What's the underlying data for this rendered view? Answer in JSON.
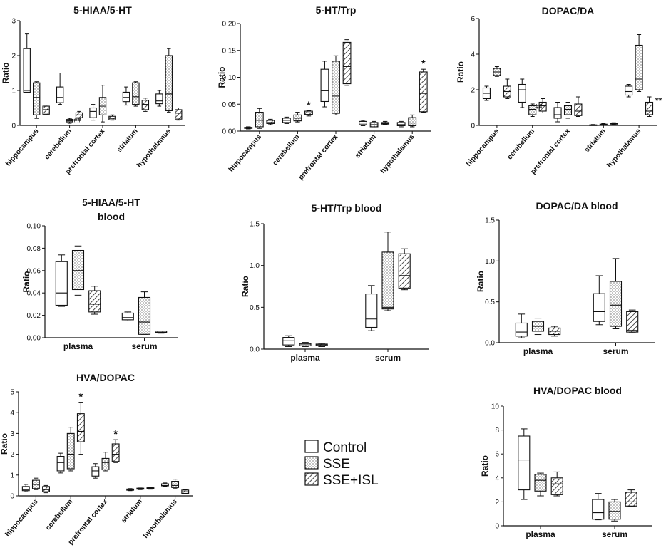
{
  "legend": [
    {
      "name": "Control",
      "pattern": "none"
    },
    {
      "name": "SSE",
      "pattern": "dots"
    },
    {
      "name": "SSE+ISL",
      "pattern": "hatch"
    }
  ],
  "chart_data": [
    {
      "type": "box",
      "title": "5-HIAA/5-HT",
      "ylabel": "Ratio",
      "ylim": [
        0,
        3
      ],
      "yticks": [
        0,
        1,
        2,
        3
      ],
      "ytick_labels": [
        "0",
        "1",
        "2",
        "3"
      ],
      "categories": [
        "hippocampus",
        "cerebellum",
        "prefrontal cortex",
        "striatum",
        "hypothalamus"
      ],
      "series": [
        {
          "name": "Control",
          "boxes": [
            [
              0.95,
              0.95,
              1.0,
              2.2,
              2.62
            ],
            [
              0.6,
              0.65,
              0.8,
              1.1,
              1.5
            ],
            [
              0.15,
              0.22,
              0.4,
              0.5,
              0.6
            ],
            [
              0.58,
              0.68,
              0.8,
              0.95,
              1.1
            ],
            [
              0.55,
              0.62,
              0.7,
              0.9,
              1.0
            ]
          ]
        },
        {
          "name": "SSE",
          "boxes": [
            [
              0.2,
              0.3,
              0.8,
              1.22,
              1.25
            ],
            [
              0.06,
              0.1,
              0.13,
              0.17,
              0.2
            ],
            [
              0.1,
              0.3,
              0.55,
              0.8,
              1.15
            ],
            [
              0.55,
              0.6,
              0.82,
              1.22,
              1.25
            ],
            [
              0.38,
              0.42,
              0.9,
              2.0,
              2.2
            ]
          ]
        },
        {
          "name": "SSE+ISL",
          "boxes": [
            [
              0.3,
              0.32,
              0.45,
              0.55,
              0.58
            ],
            [
              0.2,
              0.22,
              0.3,
              0.36,
              0.4
            ],
            [
              0.15,
              0.16,
              0.2,
              0.26,
              0.3
            ],
            [
              0.4,
              0.45,
              0.6,
              0.72,
              0.78
            ],
            [
              0.15,
              0.18,
              0.35,
              0.45,
              0.5
            ]
          ]
        }
      ],
      "annotations": [
        {
          "text": "###",
          "category": "cerebellum",
          "series": "SSE"
        }
      ]
    },
    {
      "type": "box",
      "title": "5-HT/Trp",
      "ylabel": "Ratio",
      "ylim": [
        0,
        0.2
      ],
      "yticks": [
        0,
        0.05,
        0.1,
        0.15,
        0.2
      ],
      "ytick_labels": [
        "0.00",
        "0.05",
        "0.10",
        "0.15",
        "0.20"
      ],
      "categories": [
        "hippocampus",
        "cerebellum",
        "prefrontal cortex",
        "striatum",
        "hypothalamus"
      ],
      "series": [
        {
          "name": "Control",
          "boxes": [
            [
              0.004,
              0.005,
              0.006,
              0.007,
              0.008
            ],
            [
              0.014,
              0.016,
              0.02,
              0.024,
              0.026
            ],
            [
              0.045,
              0.055,
              0.075,
              0.115,
              0.13
            ],
            [
              0.01,
              0.012,
              0.015,
              0.018,
              0.02
            ],
            [
              0.008,
              0.01,
              0.012,
              0.016,
              0.018
            ]
          ]
        },
        {
          "name": "SSE",
          "boxes": [
            [
              0.005,
              0.008,
              0.02,
              0.035,
              0.042
            ],
            [
              0.017,
              0.019,
              0.024,
              0.03,
              0.035
            ],
            [
              0.03,
              0.033,
              0.065,
              0.13,
              0.14
            ],
            [
              0.006,
              0.008,
              0.012,
              0.016,
              0.018
            ],
            [
              0.008,
              0.01,
              0.015,
              0.025,
              0.03
            ]
          ]
        },
        {
          "name": "SSE+ISL",
          "boxes": [
            [
              0.012,
              0.014,
              0.016,
              0.02,
              0.022
            ],
            [
              0.028,
              0.031,
              0.034,
              0.037,
              0.038
            ],
            [
              0.085,
              0.088,
              0.12,
              0.165,
              0.17
            ],
            [
              0.012,
              0.013,
              0.014,
              0.016,
              0.018
            ],
            [
              0.035,
              0.036,
              0.07,
              0.11,
              0.115
            ]
          ]
        }
      ],
      "annotations": [
        {
          "text": "*",
          "category": "cerebellum",
          "series": "SSE+ISL"
        },
        {
          "text": "*",
          "category": "hypothalamus",
          "series": "SSE+ISL"
        }
      ]
    },
    {
      "type": "box",
      "title": "DOPAC/DA",
      "ylabel": "Ratio",
      "ylim": [
        0,
        6
      ],
      "yticks": [
        0,
        2,
        4,
        6
      ],
      "ytick_labels": [
        "0",
        "2",
        "4",
        "6"
      ],
      "categories": [
        "hippocampus",
        "cerebellum",
        "prefrontal cortex",
        "striatum",
        "hypothalamus"
      ],
      "series": [
        {
          "name": "Control",
          "boxes": [
            [
              1.4,
              1.5,
              1.8,
              2.1,
              2.2
            ],
            [
              1.0,
              1.3,
              2.0,
              2.3,
              2.6
            ],
            [
              0.2,
              0.4,
              0.6,
              1.0,
              1.3
            ],
            [
              0.0,
              0.01,
              0.02,
              0.03,
              0.05
            ],
            [
              1.6,
              1.7,
              1.9,
              2.2,
              2.3
            ]
          ]
        },
        {
          "name": "SSE",
          "boxes": [
            [
              2.75,
              2.8,
              3.0,
              3.2,
              3.3
            ],
            [
              0.5,
              0.6,
              0.9,
              1.1,
              1.2
            ],
            [
              0.4,
              0.6,
              0.9,
              1.1,
              1.3
            ],
            [
              0.02,
              0.03,
              0.05,
              0.07,
              0.1
            ],
            [
              1.9,
              2.0,
              2.6,
              4.5,
              5.1
            ]
          ]
        },
        {
          "name": "SSE+ISL",
          "boxes": [
            [
              1.5,
              1.6,
              1.9,
              2.2,
              2.6
            ],
            [
              0.7,
              0.8,
              1.1,
              1.3,
              1.5
            ],
            [
              0.5,
              0.55,
              0.8,
              1.2,
              1.6
            ],
            [
              0.05,
              0.07,
              0.1,
              0.12,
              0.15
            ],
            [
              0.5,
              0.6,
              0.8,
              1.3,
              1.6
            ]
          ]
        }
      ],
      "annotations": [
        {
          "text": "##",
          "category": "cerebellum",
          "series": "SSE"
        },
        {
          "text": "**",
          "category": "hypothalamus",
          "series": "SSE+ISL"
        }
      ]
    },
    {
      "type": "box",
      "title": "5-HIAA/5-HT",
      "title2": "blood",
      "ylabel": "Ratio",
      "ylim": [
        0,
        0.1
      ],
      "yticks": [
        0,
        0.02,
        0.04,
        0.06,
        0.08,
        0.1
      ],
      "ytick_labels": [
        "0.00",
        "0.02",
        "0.04",
        "0.06",
        "0.08",
        "0.10"
      ],
      "categories": [
        "plasma",
        "serum"
      ],
      "series": [
        {
          "name": "Control",
          "boxes": [
            [
              0.028,
              0.029,
              0.04,
              0.068,
              0.074
            ],
            [
              0.015,
              0.016,
              0.018,
              0.022,
              0.023
            ]
          ]
        },
        {
          "name": "SSE",
          "boxes": [
            [
              0.038,
              0.043,
              0.06,
              0.078,
              0.082
            ],
            [
              0.003,
              0.003,
              0.014,
              0.036,
              0.041
            ]
          ]
        },
        {
          "name": "SSE+ISL",
          "boxes": [
            [
              0.021,
              0.023,
              0.03,
              0.042,
              0.046
            ],
            [
              0.004,
              0.0045,
              0.005,
              0.006,
              0.006
            ]
          ]
        }
      ]
    },
    {
      "type": "box",
      "title": "5-HT/Trp blood",
      "ylabel": "Ratio",
      "ylim": [
        0,
        1.5
      ],
      "yticks": [
        0,
        0.5,
        1.0,
        1.5
      ],
      "ytick_labels": [
        "0.0",
        "0.5",
        "1.0",
        "1.5"
      ],
      "categories": [
        "plasma",
        "serum"
      ],
      "series": [
        {
          "name": "Control",
          "boxes": [
            [
              0.03,
              0.05,
              0.1,
              0.14,
              0.16
            ],
            [
              0.22,
              0.26,
              0.36,
              0.66,
              0.76
            ]
          ]
        },
        {
          "name": "SSE",
          "boxes": [
            [
              0.03,
              0.04,
              0.06,
              0.07,
              0.08
            ],
            [
              0.46,
              0.48,
              0.5,
              1.16,
              1.4
            ]
          ]
        },
        {
          "name": "SSE+ISL",
          "boxes": [
            [
              0.03,
              0.04,
              0.05,
              0.06,
              0.07
            ],
            [
              0.71,
              0.73,
              0.88,
              1.14,
              1.2
            ]
          ]
        }
      ]
    },
    {
      "type": "box",
      "title": "DOPAC/DA blood",
      "ylabel": "Ratio",
      "ylim": [
        0,
        1.5
      ],
      "yticks": [
        0,
        0.5,
        1.0,
        1.5
      ],
      "ytick_labels": [
        "0.0",
        "0.5",
        "1.0",
        "1.5"
      ],
      "categories": [
        "plasma",
        "serum"
      ],
      "series": [
        {
          "name": "Control",
          "boxes": [
            [
              0.06,
              0.08,
              0.13,
              0.24,
              0.35
            ],
            [
              0.22,
              0.26,
              0.38,
              0.6,
              0.82
            ]
          ]
        },
        {
          "name": "SSE",
          "boxes": [
            [
              0.1,
              0.14,
              0.2,
              0.26,
              0.3
            ],
            [
              0.17,
              0.2,
              0.46,
              0.75,
              1.03
            ]
          ]
        },
        {
          "name": "SSE+ISL",
          "boxes": [
            [
              0.08,
              0.1,
              0.14,
              0.18,
              0.2
            ],
            [
              0.12,
              0.13,
              0.15,
              0.38,
              0.4
            ]
          ]
        }
      ]
    },
    {
      "type": "box",
      "title": "HVA/DOPAC",
      "ylabel": "Ratio",
      "ylim": [
        0,
        5
      ],
      "yticks": [
        0,
        1,
        2,
        3,
        4,
        5
      ],
      "ytick_labels": [
        "0",
        "1",
        "2",
        "3",
        "4",
        "5"
      ],
      "categories": [
        "hippocampus",
        "cerebellum",
        "prefrontal cortex",
        "striatum",
        "hypothalamus"
      ],
      "series": [
        {
          "name": "Control",
          "boxes": [
            [
              0.2,
              0.25,
              0.3,
              0.45,
              0.55
            ],
            [
              1.1,
              1.2,
              1.6,
              1.9,
              2.05
            ],
            [
              0.85,
              0.95,
              1.2,
              1.4,
              1.55
            ],
            [
              0.25,
              0.27,
              0.3,
              0.33,
              0.35
            ],
            [
              0.45,
              0.48,
              0.5,
              0.58,
              0.62
            ]
          ]
        },
        {
          "name": "SSE",
          "boxes": [
            [
              0.3,
              0.35,
              0.55,
              0.75,
              0.85
            ],
            [
              1.2,
              1.3,
              2.0,
              3.0,
              3.3
            ],
            [
              1.2,
              1.25,
              1.6,
              1.8,
              2.1
            ],
            [
              0.3,
              0.32,
              0.35,
              0.37,
              0.38
            ],
            [
              0.35,
              0.4,
              0.5,
              0.7,
              0.8
            ]
          ]
        },
        {
          "name": "SSE+ISL",
          "boxes": [
            [
              0.15,
              0.2,
              0.3,
              0.45,
              0.5
            ],
            [
              2.0,
              2.6,
              3.1,
              3.95,
              4.5
            ],
            [
              1.6,
              1.65,
              2.0,
              2.5,
              2.7
            ],
            [
              0.32,
              0.34,
              0.37,
              0.39,
              0.4
            ],
            [
              0.1,
              0.12,
              0.2,
              0.28,
              0.3
            ]
          ]
        }
      ],
      "annotations": [
        {
          "text": "*",
          "category": "cerebellum",
          "series": "SSE+ISL"
        },
        {
          "text": "*",
          "category": "prefrontal cortex",
          "series": "SSE+ISL"
        }
      ]
    },
    {
      "type": "box",
      "title": "HVA/DOPAC blood",
      "ylabel": "Ratio",
      "ylim": [
        0,
        10
      ],
      "yticks": [
        0,
        2,
        4,
        6,
        8,
        10
      ],
      "ytick_labels": [
        "0",
        "2",
        "4",
        "6",
        "8",
        "10"
      ],
      "categories": [
        "plasma",
        "serum"
      ],
      "series": [
        {
          "name": "Control",
          "boxes": [
            [
              2.2,
              3.0,
              5.5,
              7.5,
              8.1
            ],
            [
              0.5,
              0.55,
              1.1,
              2.2,
              2.7
            ]
          ]
        },
        {
          "name": "SSE",
          "boxes": [
            [
              2.5,
              2.9,
              3.8,
              4.3,
              4.4
            ],
            [
              0.4,
              0.55,
              1.2,
              2.0,
              2.2
            ]
          ]
        },
        {
          "name": "SSE+ISL",
          "boxes": [
            [
              2.5,
              2.6,
              3.5,
              4.0,
              4.5
            ],
            [
              1.6,
              1.65,
              2.0,
              2.8,
              3.0
            ]
          ]
        }
      ]
    }
  ]
}
